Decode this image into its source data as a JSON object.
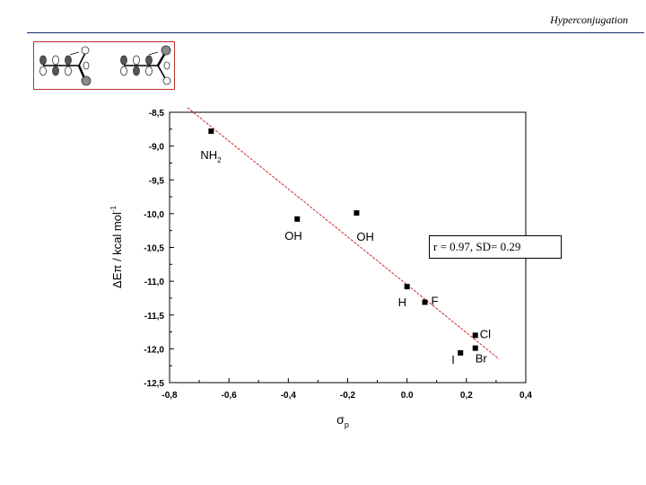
{
  "header": {
    "title": "Hyperconjugation"
  },
  "chart_data": {
    "type": "scatter",
    "xlabel": "σp",
    "ylabel": "ΔEπ / kcal mol-1",
    "xlim": [
      -0.8,
      0.4
    ],
    "ylim": [
      -12.5,
      -8.5
    ],
    "xticks": [
      "-0,8",
      "-0,6",
      "-0,4",
      "-0,2",
      "0.0",
      "0,2",
      "0,4"
    ],
    "yticks": [
      "-8,5",
      "-9,0",
      "-9,5",
      "-10,0",
      "-10,5",
      "-11,0",
      "-11,5",
      "-12,0",
      "-12,5"
    ],
    "points": [
      {
        "label": "NH2",
        "x": -0.66,
        "y": -8.78
      },
      {
        "label": "OH",
        "x": -0.37,
        "y": -10.08
      },
      {
        "label": "OH",
        "x": -0.17,
        "y": -9.99
      },
      {
        "label": "H",
        "x": 0.0,
        "y": -11.08
      },
      {
        "label": "F",
        "x": 0.06,
        "y": -11.31
      },
      {
        "label": "Cl",
        "x": 0.23,
        "y": -11.8
      },
      {
        "label": "Br",
        "x": 0.23,
        "y": -11.99
      },
      {
        "label": "I",
        "x": 0.18,
        "y": -12.06
      }
    ],
    "fit_line": {
      "x": [
        -0.74,
        0.31
      ],
      "y": [
        -8.43,
        -12.15
      ],
      "color": "#d62728"
    },
    "annotation": "r = 0.97, SD= 0.29",
    "grid": false,
    "legend": "none"
  }
}
